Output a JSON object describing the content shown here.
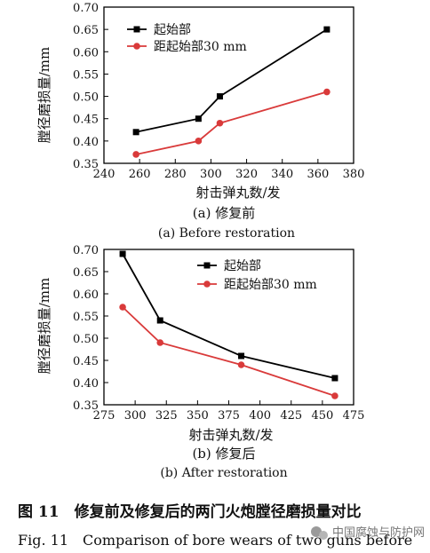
{
  "chart_data": [
    {
      "type": "line",
      "x_ticks": [
        240,
        260,
        280,
        300,
        320,
        340,
        360,
        380
      ],
      "y_ticks": [
        "0.35",
        "0.40",
        "0.45",
        "0.50",
        "0.55",
        "0.60",
        "0.65",
        "0.70"
      ],
      "xlim": [
        240,
        380
      ],
      "ylim": [
        0.35,
        0.7
      ],
      "xlabel": "射击弹丸数/发",
      "ylabel": "膛径磨损量/mm",
      "subtitle_cn": "(a) 修复前",
      "subtitle_en": "(a) Before restoration",
      "legend_position": "top-left",
      "series": [
        {
          "name": "起始部",
          "color": "#000000",
          "marker": "square",
          "x": [
            258,
            293,
            305,
            365
          ],
          "y": [
            0.42,
            0.45,
            0.5,
            0.65
          ]
        },
        {
          "name": "距起始部30 mm",
          "color": "#d93a3a",
          "marker": "circle",
          "x": [
            258,
            293,
            305,
            365
          ],
          "y": [
            0.37,
            0.4,
            0.44,
            0.51
          ]
        }
      ]
    },
    {
      "type": "line",
      "x_ticks": [
        275,
        300,
        325,
        350,
        375,
        400,
        425,
        450,
        475
      ],
      "y_ticks": [
        "0.35",
        "0.40",
        "0.45",
        "0.50",
        "0.55",
        "0.60",
        "0.65",
        "0.70"
      ],
      "xlim": [
        275,
        475
      ],
      "ylim": [
        0.35,
        0.7
      ],
      "xlabel": "射击弹丸数/发",
      "ylabel": "膛径磨损量/mm",
      "subtitle_cn": "(b) 修复后",
      "subtitle_en": "(b) After restoration",
      "legend_position": "top-right",
      "series": [
        {
          "name": "起始部",
          "color": "#000000",
          "marker": "square",
          "x": [
            290,
            320,
            385,
            460
          ],
          "y": [
            0.69,
            0.54,
            0.46,
            0.41
          ]
        },
        {
          "name": "距起始部30 mm",
          "color": "#d93a3a",
          "marker": "circle",
          "x": [
            290,
            320,
            385,
            460
          ],
          "y": [
            0.57,
            0.49,
            0.44,
            0.37
          ]
        }
      ]
    }
  ],
  "caption_cn": "图 11　修复前及修复后的两门火炮膛径磨损量对比",
  "caption_en": "Fig. 11　Comparison of bore wears of two guns before",
  "watermark": "中国腐蚀与防护网",
  "watermark_icon": "wechat-icon"
}
